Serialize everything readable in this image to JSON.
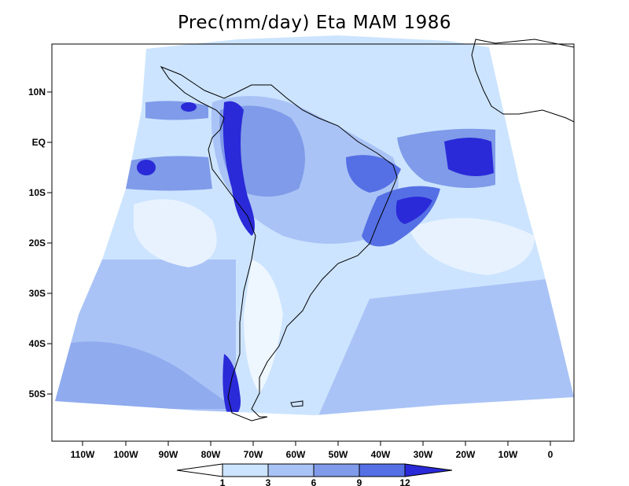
{
  "title": "Prec(mm/day) Eta MAM 1986",
  "colors": {
    "c1": "#cce4ff",
    "c3": "#aac3f6",
    "c6": "#7f9be9",
    "c9": "#5570e4",
    "c12": "#2a2ad8"
  },
  "lat_labels": [
    "10N",
    "EQ",
    "10S",
    "20S",
    "30S",
    "40S",
    "50S"
  ],
  "lon_labels": [
    "110W",
    "100W",
    "90W",
    "80W",
    "70W",
    "60W",
    "50W",
    "40W",
    "30W",
    "20W",
    "10W",
    "0"
  ],
  "colorbar": {
    "levels": [
      "1",
      "3",
      "6",
      "9",
      "12"
    ]
  }
}
